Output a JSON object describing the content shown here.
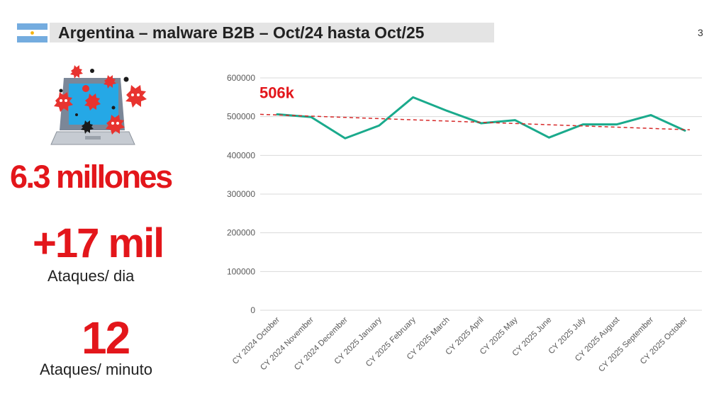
{
  "header": {
    "title": "Argentina – malware B2B – Oct/24 hasta Oct/25",
    "page_number": "3",
    "flag_icon": "argentina-flag-icon"
  },
  "stats": {
    "total_value": "6.3 millones",
    "per_day_value": "+17 mil",
    "per_day_label": "Ataques/ dia",
    "per_minute_value": "12",
    "per_minute_label": "Ataques/ minuto"
  },
  "colors": {
    "accent_red": "#e3161b",
    "line": "#1aaa8c",
    "trend": "#d62828",
    "title_bar": "#e4e4e4",
    "flag_blue": "#74acdf"
  },
  "chart_data": {
    "type": "line",
    "categories": [
      "CY 2024 October",
      "CY 2024 November",
      "CY 2024 December",
      "CY 2025 January",
      "CY 2025 February",
      "CY 2025 March",
      "CY 2025 April",
      "CY 2025 May",
      "CY 2025 June",
      "CY 2025 July",
      "CY 2025 August",
      "CY 2025 September",
      "CY 2025 October"
    ],
    "series": [
      {
        "values": [
          506000,
          499000,
          444000,
          477000,
          550000,
          515000,
          483000,
          491000,
          446000,
          480000,
          480000,
          504000,
          464000
        ]
      }
    ],
    "trendline": {
      "type": "linear",
      "style": "dashed",
      "start": 506000,
      "end": 466000
    },
    "annotation": "506k",
    "ylim": [
      0,
      600000
    ],
    "yticks": [
      "0",
      "100000",
      "200000",
      "300000",
      "400000",
      "500000",
      "600000"
    ],
    "grid": true,
    "legend": "none"
  }
}
